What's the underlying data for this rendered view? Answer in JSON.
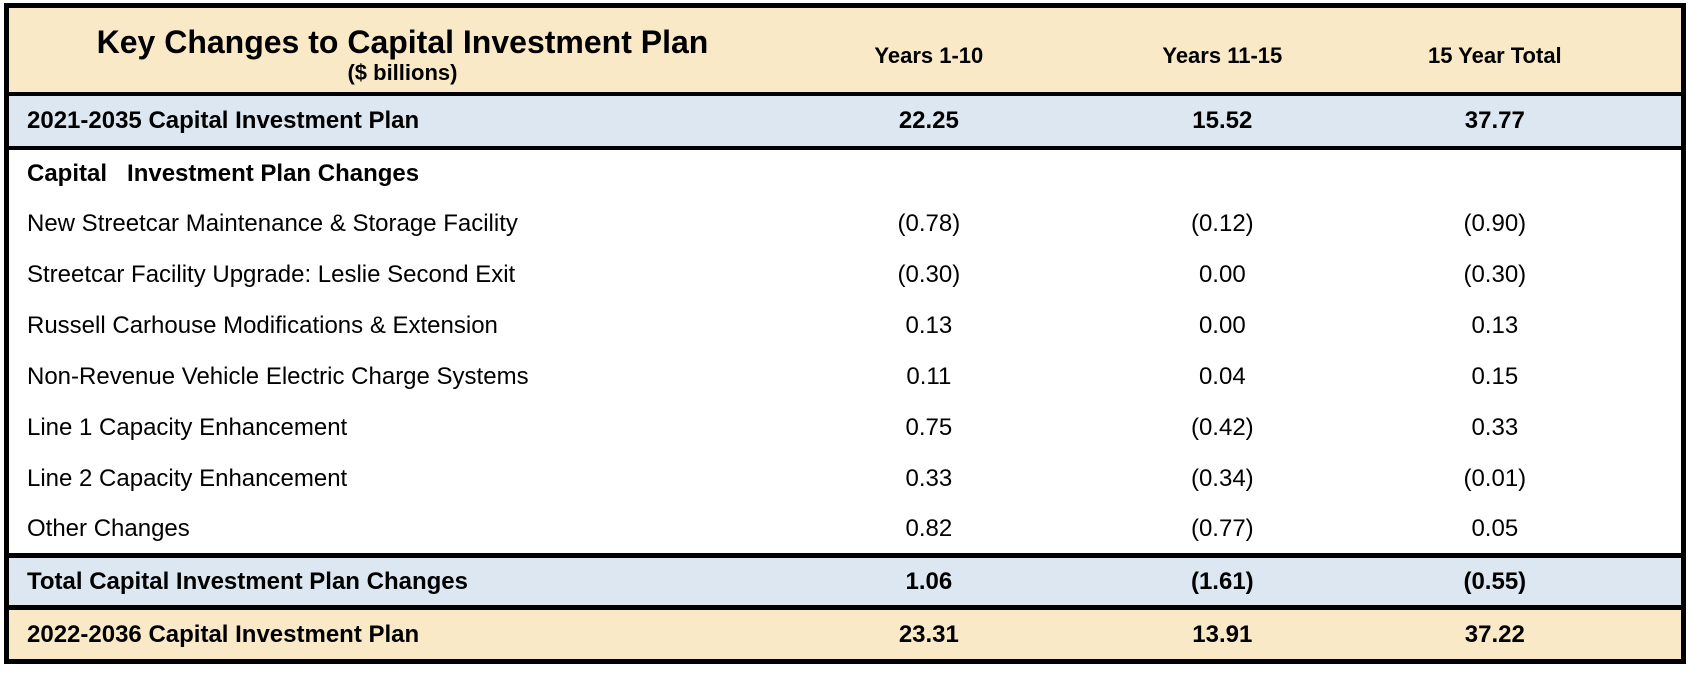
{
  "chart_data": {
    "type": "table",
    "title": "Key Changes to Capital Investment Plan",
    "subtitle": "($ billions)",
    "columns": [
      "Years 1-10",
      "Years 11-15",
      "15 Year Total"
    ],
    "rows": [
      {
        "label": "2021-2035 Capital Investment Plan",
        "values": [
          "22.25",
          "15.52",
          "37.77"
        ],
        "numeric": [
          22.25,
          15.52,
          37.77
        ]
      },
      {
        "label": "Capital   Investment Plan Changes",
        "values": [
          "",
          "",
          ""
        ],
        "numeric": [
          null,
          null,
          null
        ]
      },
      {
        "label": "New Streetcar Maintenance & Storage Facility",
        "values": [
          "(0.78)",
          "(0.12)",
          "(0.90)"
        ],
        "numeric": [
          -0.78,
          -0.12,
          -0.9
        ]
      },
      {
        "label": "Streetcar Facility Upgrade: Leslie Second Exit",
        "values": [
          "(0.30)",
          "0.00",
          "(0.30)"
        ],
        "numeric": [
          -0.3,
          0.0,
          -0.3
        ]
      },
      {
        "label": "Russell Carhouse Modifications & Extension",
        "values": [
          "0.13",
          "0.00",
          "0.13"
        ],
        "numeric": [
          0.13,
          0.0,
          0.13
        ]
      },
      {
        "label": "Non-Revenue Vehicle Electric Charge Systems",
        "values": [
          "0.11",
          "0.04",
          "0.15"
        ],
        "numeric": [
          0.11,
          0.04,
          0.15
        ]
      },
      {
        "label": "Line 1 Capacity Enhancement",
        "values": [
          "0.75",
          "(0.42)",
          "0.33"
        ],
        "numeric": [
          0.75,
          -0.42,
          0.33
        ]
      },
      {
        "label": "Line 2 Capacity Enhancement",
        "values": [
          "0.33",
          "(0.34)",
          "(0.01)"
        ],
        "numeric": [
          0.33,
          -0.34,
          -0.01
        ]
      },
      {
        "label": "Other Changes",
        "values": [
          "0.82",
          "(0.77)",
          "0.05"
        ],
        "numeric": [
          0.82,
          -0.77,
          0.05
        ]
      },
      {
        "label": "Total Capital Investment Plan Changes",
        "values": [
          "1.06",
          "(1.61)",
          "(0.55)"
        ],
        "numeric": [
          1.06,
          -1.61,
          -0.55
        ]
      },
      {
        "label": "2022-2036 Capital Investment Plan",
        "values": [
          "23.31",
          "13.91",
          "37.22"
        ],
        "numeric": [
          23.31,
          13.91,
          37.22
        ]
      }
    ],
    "layout_hints": {
      "negative_format": "parentheses",
      "value_alignment": "center",
      "label_alignment": "left"
    }
  },
  "colors": {
    "header_band": "#FAE9C6",
    "highlight_blue": "#DCE7F2",
    "highlight_tan_final": "#FAE9C6",
    "border": "#000000",
    "text": "#000000"
  }
}
